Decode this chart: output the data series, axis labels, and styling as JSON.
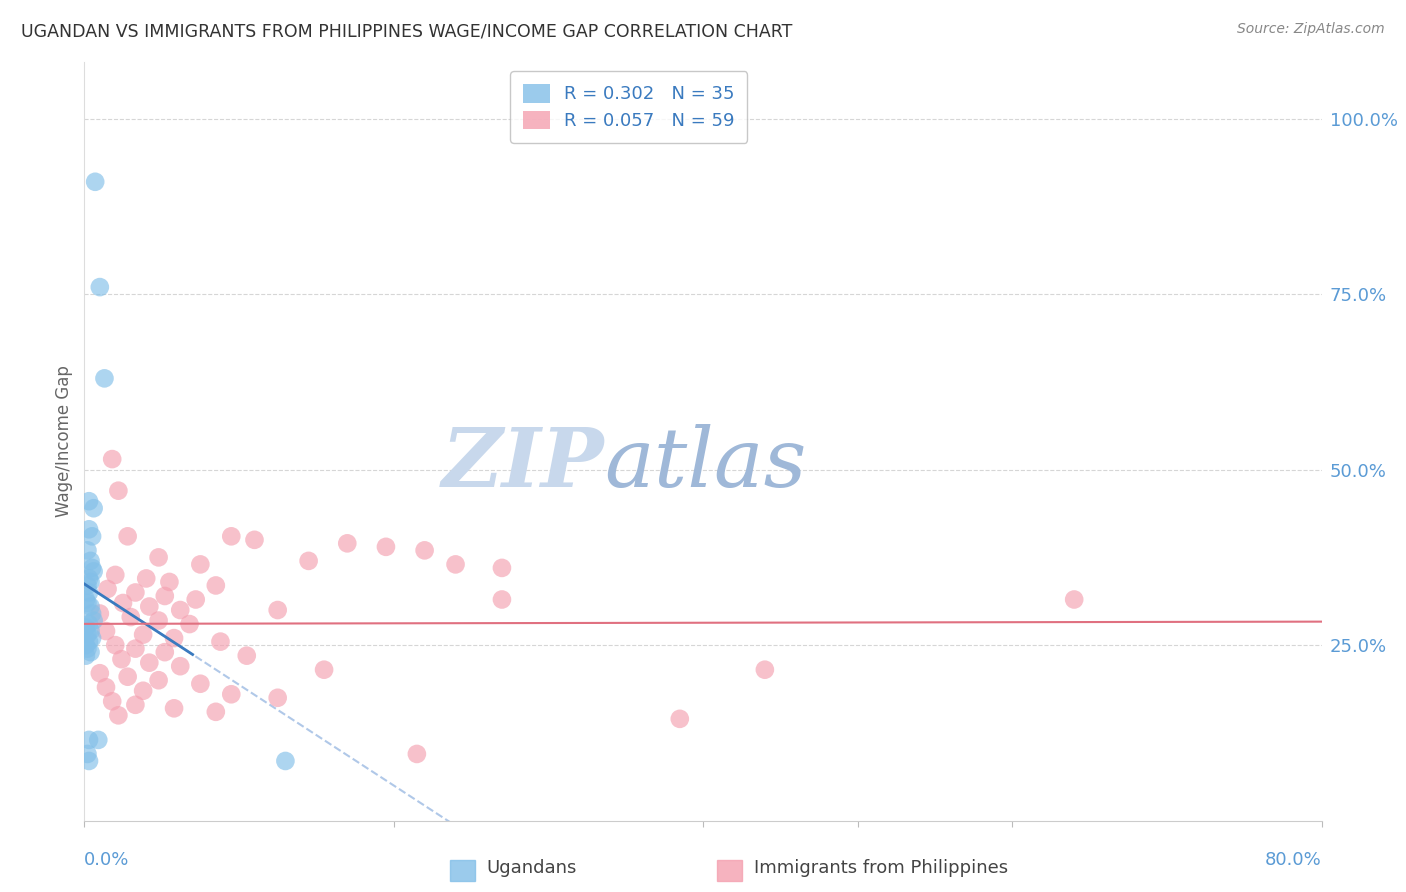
{
  "title": "UGANDAN VS IMMIGRANTS FROM PHILIPPINES WAGE/INCOME GAP CORRELATION CHART",
  "source": "Source: ZipAtlas.com",
  "ylabel": "Wage/Income Gap",
  "ytick_labels": [
    "100.0%",
    "75.0%",
    "50.0%",
    "25.0%"
  ],
  "ytick_values": [
    1.0,
    0.75,
    0.5,
    0.25
  ],
  "xmin": 0.0,
  "xmax": 0.8,
  "ymin": 0.0,
  "ymax": 1.08,
  "ugandan_color": "#82bfe8",
  "philippines_color": "#f4a0b0",
  "ugandan_line_color": "#3a7abf",
  "philippines_line_color": "#e07080",
  "dashed_line_color": "#b0c8e8",
  "watermark_zip": "ZIP",
  "watermark_atlas": "atlas",
  "watermark_color_zip": "#c8d8ec",
  "watermark_color_atlas": "#9fb8d8",
  "background_color": "#ffffff",
  "grid_color": "#cccccc",
  "title_color": "#333333",
  "tick_label_color": "#5b9bd5",
  "legend_label_color": "#3a7abf",
  "ugandan_points": [
    [
      0.007,
      0.91
    ],
    [
      0.01,
      0.76
    ],
    [
      0.013,
      0.63
    ],
    [
      0.003,
      0.455
    ],
    [
      0.006,
      0.445
    ],
    [
      0.003,
      0.415
    ],
    [
      0.005,
      0.405
    ],
    [
      0.002,
      0.385
    ],
    [
      0.004,
      0.37
    ],
    [
      0.005,
      0.36
    ],
    [
      0.006,
      0.355
    ],
    [
      0.003,
      0.345
    ],
    [
      0.004,
      0.34
    ],
    [
      0.002,
      0.335
    ],
    [
      0.003,
      0.325
    ],
    [
      0.001,
      0.315
    ],
    [
      0.002,
      0.31
    ],
    [
      0.004,
      0.305
    ],
    [
      0.005,
      0.295
    ],
    [
      0.006,
      0.285
    ],
    [
      0.003,
      0.28
    ],
    [
      0.001,
      0.275
    ],
    [
      0.004,
      0.27
    ],
    [
      0.002,
      0.265
    ],
    [
      0.005,
      0.26
    ],
    [
      0.003,
      0.255
    ],
    [
      0.001,
      0.25
    ],
    [
      0.002,
      0.245
    ],
    [
      0.004,
      0.24
    ],
    [
      0.001,
      0.235
    ],
    [
      0.003,
      0.115
    ],
    [
      0.009,
      0.115
    ],
    [
      0.002,
      0.095
    ],
    [
      0.003,
      0.085
    ],
    [
      0.13,
      0.085
    ]
  ],
  "philippines_points": [
    [
      0.018,
      0.515
    ],
    [
      0.022,
      0.47
    ],
    [
      0.028,
      0.405
    ],
    [
      0.095,
      0.405
    ],
    [
      0.11,
      0.4
    ],
    [
      0.17,
      0.395
    ],
    [
      0.195,
      0.39
    ],
    [
      0.22,
      0.385
    ],
    [
      0.048,
      0.375
    ],
    [
      0.145,
      0.37
    ],
    [
      0.075,
      0.365
    ],
    [
      0.24,
      0.365
    ],
    [
      0.27,
      0.36
    ],
    [
      0.02,
      0.35
    ],
    [
      0.04,
      0.345
    ],
    [
      0.055,
      0.34
    ],
    [
      0.085,
      0.335
    ],
    [
      0.015,
      0.33
    ],
    [
      0.033,
      0.325
    ],
    [
      0.052,
      0.32
    ],
    [
      0.072,
      0.315
    ],
    [
      0.025,
      0.31
    ],
    [
      0.042,
      0.305
    ],
    [
      0.062,
      0.3
    ],
    [
      0.125,
      0.3
    ],
    [
      0.01,
      0.295
    ],
    [
      0.03,
      0.29
    ],
    [
      0.048,
      0.285
    ],
    [
      0.068,
      0.28
    ],
    [
      0.014,
      0.27
    ],
    [
      0.038,
      0.265
    ],
    [
      0.058,
      0.26
    ],
    [
      0.088,
      0.255
    ],
    [
      0.02,
      0.25
    ],
    [
      0.033,
      0.245
    ],
    [
      0.052,
      0.24
    ],
    [
      0.105,
      0.235
    ],
    [
      0.024,
      0.23
    ],
    [
      0.042,
      0.225
    ],
    [
      0.062,
      0.22
    ],
    [
      0.155,
      0.215
    ],
    [
      0.01,
      0.21
    ],
    [
      0.028,
      0.205
    ],
    [
      0.048,
      0.2
    ],
    [
      0.075,
      0.195
    ],
    [
      0.014,
      0.19
    ],
    [
      0.038,
      0.185
    ],
    [
      0.095,
      0.18
    ],
    [
      0.125,
      0.175
    ],
    [
      0.018,
      0.17
    ],
    [
      0.033,
      0.165
    ],
    [
      0.058,
      0.16
    ],
    [
      0.085,
      0.155
    ],
    [
      0.022,
      0.15
    ],
    [
      0.27,
      0.315
    ],
    [
      0.385,
      0.145
    ],
    [
      0.64,
      0.315
    ],
    [
      0.215,
      0.095
    ],
    [
      0.44,
      0.215
    ]
  ],
  "ugandan_N": 35,
  "philippines_N": 59,
  "ugandan_R": 0.302,
  "philippines_R": 0.057
}
